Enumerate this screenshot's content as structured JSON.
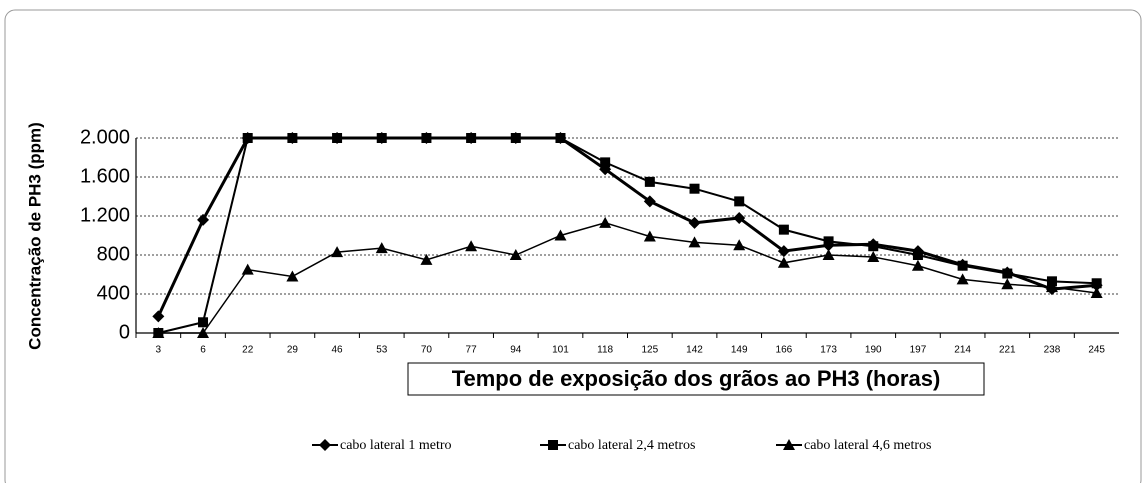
{
  "chart_data": {
    "type": "line",
    "y_label": "Concentração de PH3 (ppm)",
    "x_label": "Tempo de exposição dos grãos ao PH3 (horas)",
    "categories": [
      "3",
      "6",
      "22",
      "29",
      "46",
      "53",
      "70",
      "77",
      "94",
      "101",
      "118",
      "125",
      "142",
      "149",
      "166",
      "173",
      "190",
      "197",
      "214",
      "221",
      "238",
      "245"
    ],
    "series": [
      {
        "name": "cabo lateral 1 metro",
        "color": "#000000",
        "marker": "diamond",
        "line_width": 3,
        "values": [
          170,
          1160,
          2000,
          2000,
          2000,
          2000,
          2000,
          2000,
          2000,
          2000,
          1680,
          1350,
          1130,
          1180,
          840,
          900,
          910,
          840,
          700,
          620,
          450,
          490
        ]
      },
      {
        "name": "cabo lateral 2,4 metros",
        "color": "#000000",
        "marker": "square",
        "line_width": 2,
        "values": [
          0,
          110,
          2000,
          2000,
          2000,
          2000,
          2000,
          2000,
          2000,
          2000,
          1750,
          1550,
          1480,
          1350,
          1060,
          940,
          890,
          800,
          690,
          610,
          530,
          510
        ]
      },
      {
        "name": "cabo lateral 4,6 metros",
        "color": "#000000",
        "marker": "triangle",
        "line_width": 1.5,
        "values": [
          0,
          0,
          650,
          580,
          830,
          870,
          750,
          890,
          800,
          1000,
          1130,
          990,
          930,
          900,
          720,
          800,
          780,
          690,
          550,
          500,
          470,
          410
        ]
      }
    ],
    "ylim": [
      0,
      2000
    ],
    "yticks": [
      0,
      400,
      800,
      {
        "value": 1200,
        "label": "1.200"
      },
      {
        "value": 1600,
        "label": "1.600"
      },
      {
        "value": 2000,
        "label": "2.000"
      }
    ],
    "grid": true,
    "legend": "bottom"
  }
}
